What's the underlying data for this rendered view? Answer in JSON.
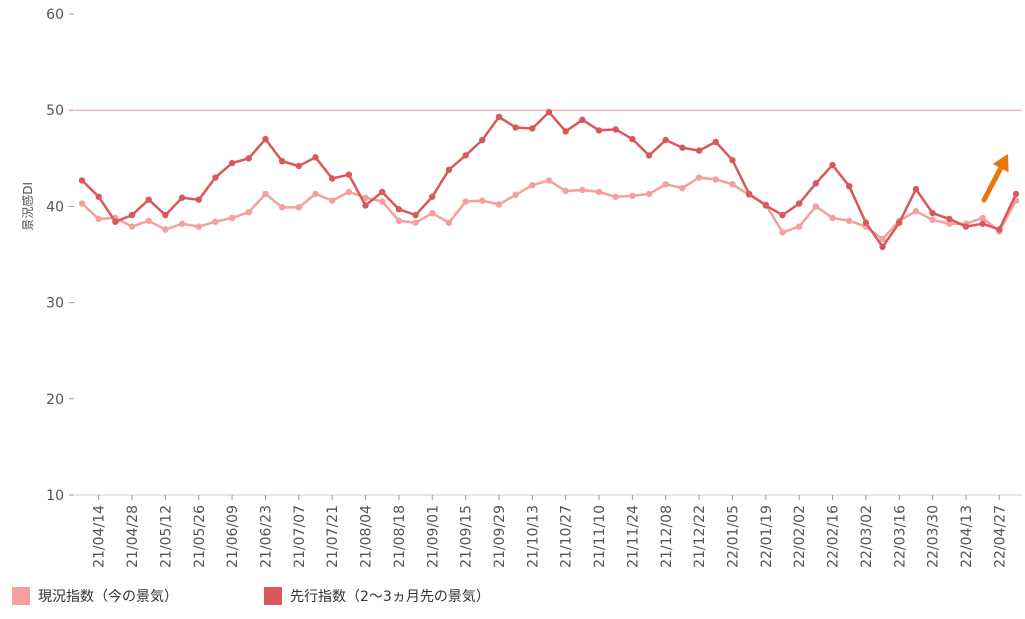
{
  "chart_data": {
    "type": "line",
    "ylabel": "景況感DI",
    "xlabel": "",
    "ylim": [
      10,
      60
    ],
    "yticks": [
      10,
      20,
      30,
      40,
      50,
      60
    ],
    "reference_line": 50,
    "reference_color": "#f4b9b9",
    "x_tick_labels": [
      "21/04/14",
      "21/04/28",
      "21/05/12",
      "21/05/26",
      "21/06/09",
      "21/06/23",
      "21/07/07",
      "21/07/21",
      "21/08/04",
      "21/08/18",
      "21/09/01",
      "21/09/15",
      "21/09/29",
      "21/10/13",
      "21/10/27",
      "21/11/10",
      "21/11/24",
      "21/12/08",
      "21/12/22",
      "22/01/05",
      "22/01/19",
      "22/02/02",
      "22/02/16",
      "22/03/02",
      "22/03/16",
      "22/03/30",
      "22/04/13",
      "22/04/27"
    ],
    "legend_position": "bottom-left",
    "series": [
      {
        "name": "現況指数（今の景気）",
        "color": "#f4a09c",
        "values": [
          40.3,
          38.7,
          38.8,
          37.9,
          38.5,
          37.6,
          38.2,
          37.9,
          38.4,
          38.8,
          39.4,
          41.3,
          39.9,
          39.9,
          41.3,
          40.6,
          41.5,
          40.9,
          40.5,
          38.5,
          38.3,
          39.3,
          38.3,
          40.5,
          40.6,
          40.2,
          41.2,
          42.2,
          42.7,
          41.6,
          41.7,
          41.5,
          41.0,
          41.1,
          41.3,
          42.3,
          41.9,
          43.0,
          42.8,
          42.3,
          41.2,
          40.2,
          37.3,
          37.9,
          40.0,
          38.8,
          38.5,
          37.9,
          36.6,
          38.5,
          39.5,
          38.6,
          38.2,
          38.2,
          38.8,
          37.4,
          40.6
        ]
      },
      {
        "name": "先行指数（2〜3ヵ月先の景気）",
        "color": "#d9585b",
        "values": [
          42.7,
          41.0,
          38.4,
          39.1,
          40.7,
          39.1,
          40.9,
          40.7,
          43.0,
          44.5,
          45.0,
          47.0,
          44.7,
          44.2,
          45.1,
          42.9,
          43.3,
          40.1,
          41.5,
          39.7,
          39.1,
          41.0,
          43.8,
          45.3,
          46.9,
          49.3,
          48.2,
          48.1,
          49.8,
          47.8,
          49.0,
          47.9,
          48.0,
          47.0,
          45.3,
          46.9,
          46.1,
          45.8,
          46.7,
          44.8,
          41.3,
          40.1,
          39.1,
          40.3,
          42.4,
          44.3,
          42.1,
          38.3,
          35.8,
          38.3,
          41.8,
          39.3,
          38.7,
          37.9,
          38.2,
          37.6,
          41.3
        ]
      }
    ],
    "arrow_color": "#e8760d"
  }
}
